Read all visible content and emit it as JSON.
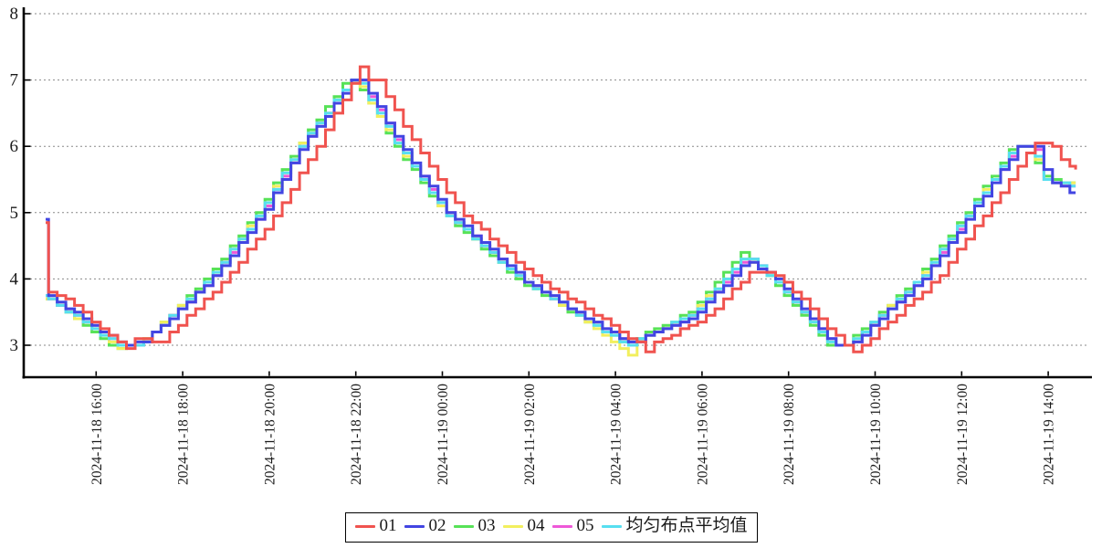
{
  "chart_data": {
    "type": "line",
    "style": "step-after",
    "title": "",
    "xlabel": "",
    "ylabel": "",
    "grid": "horizontal-dotted",
    "legend_position": "bottom-center",
    "y_axis": {
      "ticks": [
        3,
        4,
        5,
        6,
        7,
        8
      ],
      "range": [
        2.5,
        8.1
      ]
    },
    "x_axis": {
      "tick_labels": [
        "2024-11-18 16:00",
        "2024-11-18 18:00",
        "2024-11-18 20:00",
        "2024-11-18 22:00",
        "2024-11-19 00:00",
        "2024-11-19 02:00",
        "2024-11-19 04:00",
        "2024-11-19 06:00",
        "2024-11-19 08:00",
        "2024-11-19 10:00",
        "2024-11-19 12:00",
        "2024-11-19 14:00"
      ],
      "tick_minutes": [
        70,
        190,
        310,
        430,
        550,
        670,
        790,
        910,
        1030,
        1150,
        1270,
        1390
      ],
      "start_time": "2024-11-18 14:50",
      "end_time": "2024-11-19 14:38"
    },
    "value_resolution": 0.05,
    "sample_step_minutes": 12,
    "draw_order": [
      "03",
      "04",
      "05",
      "mean",
      "02",
      "01"
    ],
    "series": [
      {
        "id": "01",
        "name": "01",
        "color": "#f0534f",
        "keypoints": [
          [
            0,
            4.85
          ],
          [
            4,
            3.78
          ],
          [
            22,
            3.75
          ],
          [
            112,
            2.94
          ],
          [
            125,
            3.1
          ],
          [
            160,
            3.05
          ],
          [
            250,
            4
          ],
          [
            320,
            5
          ],
          [
            375,
            6
          ],
          [
            437,
            7.2
          ],
          [
            448,
            7
          ],
          [
            460,
            7
          ],
          [
            512,
            6
          ],
          [
            577,
            5
          ],
          [
            680,
            4
          ],
          [
            755,
            3.5
          ],
          [
            820,
            3.04
          ],
          [
            832,
            2.9
          ],
          [
            844,
            3.04
          ],
          [
            920,
            3.45
          ],
          [
            975,
            4.1
          ],
          [
            1005,
            4.1
          ],
          [
            1020,
            4
          ],
          [
            1108,
            3
          ],
          [
            1120,
            2.88
          ],
          [
            1132,
            3
          ],
          [
            1235,
            4
          ],
          [
            1303,
            5
          ],
          [
            1368,
            6
          ],
          [
            1374,
            6.05
          ],
          [
            1392,
            6.05
          ],
          [
            1400,
            5.9
          ],
          [
            1414,
            5.75
          ],
          [
            1428,
            5.64
          ]
        ]
      },
      {
        "id": "02",
        "name": "02",
        "color": "#4245e2",
        "keypoints": [
          [
            0,
            4.9
          ],
          [
            3,
            3.75
          ],
          [
            105,
            3
          ],
          [
            135,
            3.05
          ],
          [
            230,
            4
          ],
          [
            300,
            5
          ],
          [
            355,
            6
          ],
          [
            425,
            7
          ],
          [
            437,
            7
          ],
          [
            492,
            6
          ],
          [
            557,
            5
          ],
          [
            660,
            4
          ],
          [
            735,
            3.5
          ],
          [
            800,
            3.1
          ],
          [
            812,
            3
          ],
          [
            825,
            3.1
          ],
          [
            900,
            3.45
          ],
          [
            972,
            4.3
          ],
          [
            1010,
            4
          ],
          [
            1093,
            3
          ],
          [
            1115,
            3
          ],
          [
            1215,
            4
          ],
          [
            1283,
            5
          ],
          [
            1348,
            6
          ],
          [
            1372,
            6
          ],
          [
            1388,
            5.5
          ],
          [
            1412,
            5.35
          ],
          [
            1428,
            5.3
          ]
        ]
      },
      {
        "id": "03",
        "name": "03",
        "color": "#57e257",
        "keypoints": [
          [
            0,
            3.72
          ],
          [
            97,
            2.95
          ],
          [
            127,
            3
          ],
          [
            222,
            4
          ],
          [
            292,
            5
          ],
          [
            347,
            6
          ],
          [
            417,
            7
          ],
          [
            429,
            7
          ],
          [
            484,
            6
          ],
          [
            549,
            5
          ],
          [
            652,
            4
          ],
          [
            727,
            3.5
          ],
          [
            804,
            3
          ],
          [
            817,
            3.1
          ],
          [
            892,
            3.5
          ],
          [
            964,
            4.4
          ],
          [
            1004,
            4
          ],
          [
            1085,
            3
          ],
          [
            1107,
            3
          ],
          [
            1207,
            4
          ],
          [
            1275,
            5
          ],
          [
            1340,
            6
          ],
          [
            1364,
            6
          ],
          [
            1378,
            5.55
          ],
          [
            1410,
            5.45
          ],
          [
            1428,
            5.45
          ]
        ]
      },
      {
        "id": "04",
        "name": "04",
        "color": "#f2ef5e",
        "keypoints": [
          [
            0,
            3.72
          ],
          [
            100,
            2.97
          ],
          [
            130,
            3.02
          ],
          [
            225,
            4
          ],
          [
            295,
            5
          ],
          [
            350,
            6
          ],
          [
            420,
            6.95
          ],
          [
            432,
            6.95
          ],
          [
            487,
            6
          ],
          [
            552,
            5
          ],
          [
            655,
            4
          ],
          [
            730,
            3.5
          ],
          [
            808,
            2.83
          ],
          [
            822,
            3.08
          ],
          [
            895,
            3.47
          ],
          [
            967,
            4.35
          ],
          [
            1007,
            4
          ],
          [
            1088,
            3
          ],
          [
            1110,
            3
          ],
          [
            1210,
            4
          ],
          [
            1278,
            5
          ],
          [
            1343,
            6
          ],
          [
            1366,
            6
          ],
          [
            1380,
            5.5
          ],
          [
            1410,
            5.43
          ],
          [
            1428,
            5.43
          ]
        ]
      },
      {
        "id": "05",
        "name": "05",
        "color": "#ee58d8",
        "keypoints": [
          [
            0,
            3.73
          ],
          [
            103,
            3
          ],
          [
            133,
            3.03
          ],
          [
            228,
            4
          ],
          [
            298,
            5
          ],
          [
            353,
            6
          ],
          [
            423,
            7
          ],
          [
            435,
            7
          ],
          [
            490,
            6
          ],
          [
            555,
            5
          ],
          [
            658,
            4
          ],
          [
            733,
            3.5
          ],
          [
            810,
            3.03
          ],
          [
            823,
            3.08
          ],
          [
            898,
            3.46
          ],
          [
            970,
            4.33
          ],
          [
            1009,
            4
          ],
          [
            1091,
            3
          ],
          [
            1113,
            3
          ],
          [
            1213,
            4
          ],
          [
            1281,
            5
          ],
          [
            1346,
            6
          ],
          [
            1370,
            6
          ],
          [
            1384,
            5.5
          ],
          [
            1412,
            5.4
          ],
          [
            1428,
            5.4
          ]
        ]
      },
      {
        "id": "mean",
        "name": "均匀布点平均值",
        "color": "#57dff0",
        "keypoints": [
          [
            0,
            3.73
          ],
          [
            101,
            2.98
          ],
          [
            131,
            3.02
          ],
          [
            226,
            4
          ],
          [
            296,
            5
          ],
          [
            351,
            6
          ],
          [
            421,
            6.98
          ],
          [
            433,
            6.98
          ],
          [
            488,
            6
          ],
          [
            553,
            5
          ],
          [
            656,
            4
          ],
          [
            731,
            3.5
          ],
          [
            806,
            2.98
          ],
          [
            820,
            3.08
          ],
          [
            896,
            3.47
          ],
          [
            968,
            4.36
          ],
          [
            1008,
            4
          ],
          [
            1089,
            3
          ],
          [
            1111,
            3
          ],
          [
            1211,
            4
          ],
          [
            1279,
            5
          ],
          [
            1344,
            6
          ],
          [
            1368,
            6
          ],
          [
            1382,
            5.52
          ],
          [
            1410,
            5.42
          ],
          [
            1428,
            5.4
          ]
        ]
      }
    ],
    "colors": {
      "axis": "#000000",
      "grid": "#8a8a8a",
      "tick_text": "#1a1a1a",
      "background": "#ffffff"
    }
  }
}
